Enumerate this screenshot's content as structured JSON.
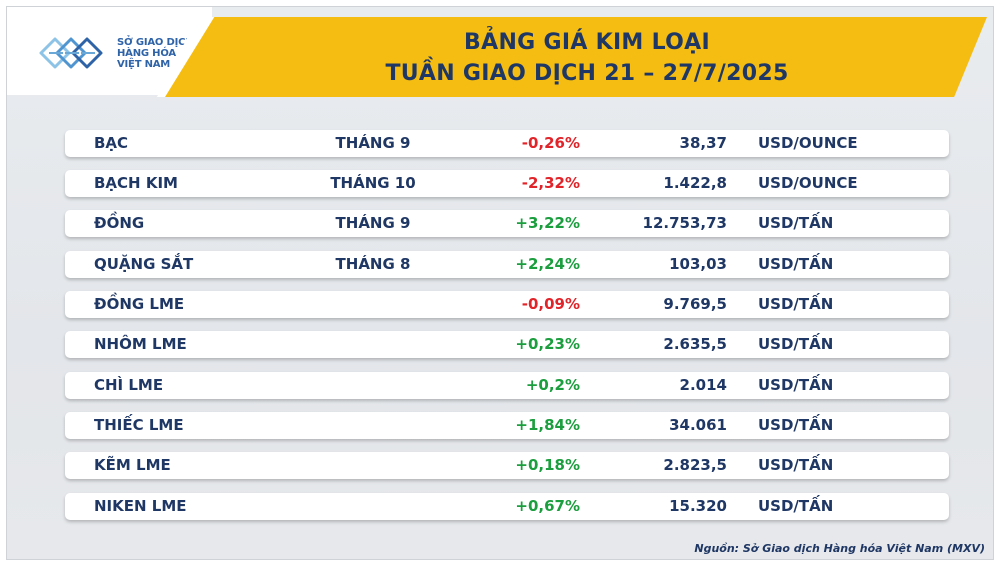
{
  "logo": {
    "lines": [
      "SỞ GIAO DỊCH",
      "HÀNG HÓA",
      "VIỆT NAM"
    ]
  },
  "header": {
    "title_line1": "BẢNG GIÁ KIM LOẠI",
    "title_line2": "TUẦN GIAO DỊCH 21 – 27/7/2025"
  },
  "colors": {
    "banner": "#f5bd12",
    "title_text": "#1f3764",
    "negative": "#e0242a",
    "positive": "#1b9e3e"
  },
  "table": {
    "rows": [
      {
        "name": "BẠC",
        "month": "THÁNG 9",
        "change": "-0,26%",
        "price": "38,37",
        "unit": "USD/OUNCE",
        "trend": "neg"
      },
      {
        "name": "BẠCH KIM",
        "month": "THÁNG 10",
        "change": "-2,32%",
        "price": "1.422,8",
        "unit": "USD/OUNCE",
        "trend": "neg"
      },
      {
        "name": "ĐỒNG",
        "month": "THÁNG 9",
        "change": "+3,22%",
        "price": "12.753,73",
        "unit": "USD/TẤN",
        "trend": "pos"
      },
      {
        "name": "QUẶNG SẮT",
        "month": "THÁNG 8",
        "change": "+2,24%",
        "price": "103,03",
        "unit": "USD/TẤN",
        "trend": "pos"
      },
      {
        "name": "ĐỒNG LME",
        "month": "",
        "change": "-0,09%",
        "price": "9.769,5",
        "unit": "USD/TẤN",
        "trend": "neg"
      },
      {
        "name": "NHÔM LME",
        "month": "",
        "change": "+0,23%",
        "price": "2.635,5",
        "unit": "USD/TẤN",
        "trend": "pos"
      },
      {
        "name": "CHÌ LME",
        "month": "",
        "change": "+0,2%",
        "price": "2.014",
        "unit": "USD/TẤN",
        "trend": "pos"
      },
      {
        "name": "THIẾC LME",
        "month": "",
        "change": "+1,84%",
        "price": "34.061",
        "unit": "USD/TẤN",
        "trend": "pos"
      },
      {
        "name": "KẼM LME",
        "month": "",
        "change": "+0,18%",
        "price": "2.823,5",
        "unit": "USD/TẤN",
        "trend": "pos"
      },
      {
        "name": "NIKEN LME",
        "month": "",
        "change": "+0,67%",
        "price": "15.320",
        "unit": "USD/TẤN",
        "trend": "pos"
      }
    ]
  },
  "footer": {
    "source": "Nguồn: Sở Giao dịch Hàng hóa Việt Nam (MXV)"
  }
}
